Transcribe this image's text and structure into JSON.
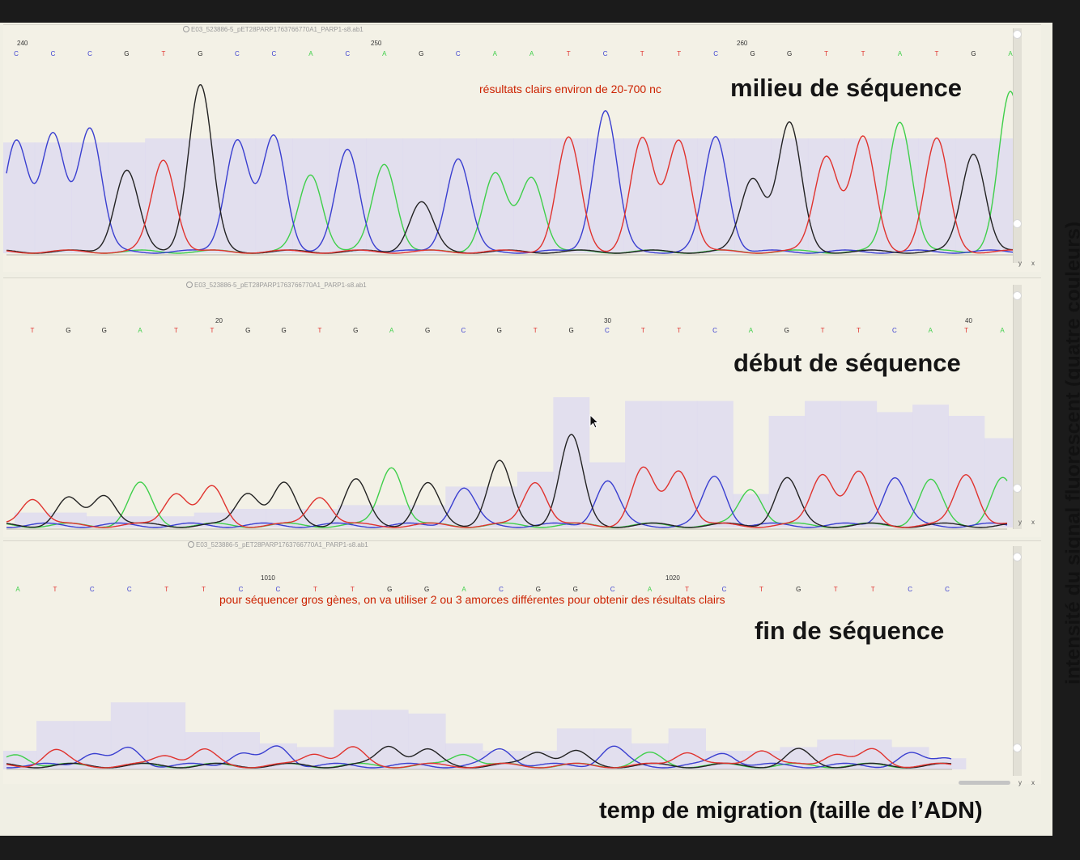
{
  "annotations": {
    "ylabel": "intensité du signal fluorescent (quatre couleurs)",
    "xlabel": "temp de migration (taille de l’ADN)"
  },
  "colors": {
    "A": "#3fcf4a",
    "C": "#3a3fd0",
    "G": "#222222",
    "T": "#e0332e"
  },
  "chart_data": [
    {
      "type": "line",
      "file_name": "E03_523886-5_pET28PARP1763766770A1_PARP1-s8.ab1",
      "heading": "milieu de séquence",
      "note": "résultats clairs environ de 20-700 nc",
      "position_labels": [
        {
          "text": "240",
          "x": 240
        },
        {
          "text": "250",
          "x": 250
        },
        {
          "text": "260",
          "x": 260
        }
      ],
      "bases": [
        "C",
        "C",
        "C",
        "G",
        "T",
        "G",
        "C",
        "C",
        "A",
        "C",
        "A",
        "G",
        "C",
        "A",
        "A",
        "T",
        "C",
        "T",
        "T",
        "C",
        "G",
        "G",
        "T",
        "T",
        "A",
        "T",
        "G",
        "A"
      ],
      "peaks": [
        {
          "base": "C",
          "height": 0.84
        },
        {
          "base": "C",
          "height": 0.87
        },
        {
          "base": "C",
          "height": 0.93
        },
        {
          "base": "G",
          "height": 0.61
        },
        {
          "base": "T",
          "height": 0.69
        },
        {
          "base": "G",
          "height": 1.25
        },
        {
          "base": "C",
          "height": 0.84
        },
        {
          "base": "C",
          "height": 0.86
        },
        {
          "base": "A",
          "height": 0.58
        },
        {
          "base": "C",
          "height": 0.76
        },
        {
          "base": "A",
          "height": 0.66
        },
        {
          "base": "G",
          "height": 0.37
        },
        {
          "base": "C",
          "height": 0.7
        },
        {
          "base": "A",
          "height": 0.58
        },
        {
          "base": "A",
          "height": 0.56
        },
        {
          "base": "T",
          "height": 0.85
        },
        {
          "base": "C",
          "height": 1.06
        },
        {
          "base": "T",
          "height": 0.84
        },
        {
          "base": "T",
          "height": 0.84
        },
        {
          "base": "C",
          "height": 0.86
        },
        {
          "base": "G",
          "height": 0.55
        },
        {
          "base": "G",
          "height": 0.96
        },
        {
          "base": "T",
          "height": 0.72
        },
        {
          "base": "T",
          "height": 0.85
        },
        {
          "base": "A",
          "height": 0.98
        },
        {
          "base": "T",
          "height": 0.84
        },
        {
          "base": "G",
          "height": 0.74
        },
        {
          "base": "A",
          "height": 1.19
        }
      ],
      "quality_bars": [
        0.83,
        0.83,
        0.83,
        0.83,
        0.86,
        0.86,
        0.86,
        0.86,
        0.86,
        0.86,
        0.86,
        0.86,
        0.86,
        0.86,
        0.86,
        0.86,
        0.86,
        0.86,
        0.86,
        0.86,
        0.86,
        0.86,
        0.86,
        0.86,
        0.86,
        0.86,
        0.86,
        0.86
      ]
    },
    {
      "type": "line",
      "file_name": "E03_523886-5_pET28PARP1763766770A1_PARP1-s8.ab1",
      "heading": "début de séquence",
      "note": "",
      "position_labels": [
        {
          "text": "20",
          "x": 20
        },
        {
          "text": "30",
          "x": 30
        },
        {
          "text": "40",
          "x": 40
        }
      ],
      "bases": [
        "T",
        "G",
        "G",
        "A",
        "T",
        "T",
        "G",
        "G",
        "T",
        "G",
        "A",
        "G",
        "C",
        "G",
        "T",
        "G",
        "C",
        "T",
        "T",
        "C",
        "A",
        "G",
        "T",
        "T",
        "C",
        "A",
        "T",
        "A"
      ],
      "peaks": [
        {
          "base": "T",
          "height": 0.15
        },
        {
          "base": "G",
          "height": 0.14
        },
        {
          "base": "G",
          "height": 0.17
        },
        {
          "base": "A",
          "height": 0.22
        },
        {
          "base": "T",
          "height": 0.18
        },
        {
          "base": "T",
          "height": 0.2
        },
        {
          "base": "G",
          "height": 0.18
        },
        {
          "base": "G",
          "height": 0.22
        },
        {
          "base": "T",
          "height": 0.16
        },
        {
          "base": "G",
          "height": 0.24
        },
        {
          "base": "A",
          "height": 0.32
        },
        {
          "base": "G",
          "height": 0.22
        },
        {
          "base": "C",
          "height": 0.2
        },
        {
          "base": "G",
          "height": 0.34
        },
        {
          "base": "T",
          "height": 0.24
        },
        {
          "base": "G",
          "height": 0.48
        },
        {
          "base": "C",
          "height": 0.24
        },
        {
          "base": "T",
          "height": 0.3
        },
        {
          "base": "T",
          "height": 0.3
        },
        {
          "base": "C",
          "height": 0.26
        },
        {
          "base": "A",
          "height": 0.2
        },
        {
          "base": "G",
          "height": 0.25
        },
        {
          "base": "T",
          "height": 0.28
        },
        {
          "base": "T",
          "height": 0.28
        },
        {
          "base": "C",
          "height": 0.26
        },
        {
          "base": "A",
          "height": 0.24
        },
        {
          "base": "T",
          "height": 0.28
        },
        {
          "base": "A",
          "height": 0.25
        }
      ],
      "quality_bars": [
        0.08,
        0.08,
        0.06,
        0.06,
        0.06,
        0.08,
        0.1,
        0.1,
        0.1,
        0.12,
        0.12,
        0.12,
        0.22,
        0.22,
        0.3,
        0.7,
        0.35,
        0.68,
        0.68,
        0.68,
        0.18,
        0.6,
        0.68,
        0.68,
        0.62,
        0.66,
        0.6,
        0.48
      ]
    },
    {
      "type": "line",
      "file_name": "E03_523886-5_pET28PARP1763766770A1_PARP1-s8.ab1",
      "heading": "fin de séquence",
      "note": "pour séquencer gros gènes, on va utiliser 2 ou 3 amorces différentes pour obtenir des résultats clairs",
      "position_labels": [
        {
          "text": "1010",
          "x": 1010
        },
        {
          "text": "1020",
          "x": 1020
        }
      ],
      "bases": [
        "A",
        "T",
        "C",
        "C",
        "T",
        "T",
        "C",
        "C",
        "T",
        "T",
        "G",
        "G",
        "A",
        "C",
        "G",
        "G",
        "C",
        "A",
        "T",
        "C",
        "T",
        "G",
        "T",
        "T",
        "C",
        "C"
      ],
      "peaks": [
        {
          "base": "A",
          "height": 0.06
        },
        {
          "base": "T",
          "height": 0.08
        },
        {
          "base": "C",
          "height": 0.07
        },
        {
          "base": "C",
          "height": 0.09
        },
        {
          "base": "T",
          "height": 0.06
        },
        {
          "base": "T",
          "height": 0.08
        },
        {
          "base": "C",
          "height": 0.07
        },
        {
          "base": "C",
          "height": 0.1
        },
        {
          "base": "T",
          "height": 0.07
        },
        {
          "base": "T",
          "height": 0.09
        },
        {
          "base": "G",
          "height": 0.11
        },
        {
          "base": "G",
          "height": 0.08
        },
        {
          "base": "A",
          "height": 0.07
        },
        {
          "base": "C",
          "height": 0.09
        },
        {
          "base": "G",
          "height": 0.08
        },
        {
          "base": "G",
          "height": 0.07
        },
        {
          "base": "C",
          "height": 0.1
        },
        {
          "base": "A",
          "height": 0.06
        },
        {
          "base": "T",
          "height": 0.08
        },
        {
          "base": "C",
          "height": 0.07
        },
        {
          "base": "T",
          "height": 0.09
        },
        {
          "base": "G",
          "height": 0.08
        },
        {
          "base": "T",
          "height": 0.07
        },
        {
          "base": "T",
          "height": 0.08
        },
        {
          "base": "C",
          "height": 0.06
        },
        {
          "base": "C",
          "height": 0.05
        }
      ],
      "quality_bars": [
        0.1,
        0.26,
        0.26,
        0.36,
        0.36,
        0.2,
        0.2,
        0.14,
        0.12,
        0.32,
        0.32,
        0.3,
        0.14,
        0.1,
        0.1,
        0.22,
        0.22,
        0.14,
        0.22,
        0.1,
        0.1,
        0.12,
        0.16,
        0.16,
        0.12,
        0.06
      ]
    }
  ]
}
